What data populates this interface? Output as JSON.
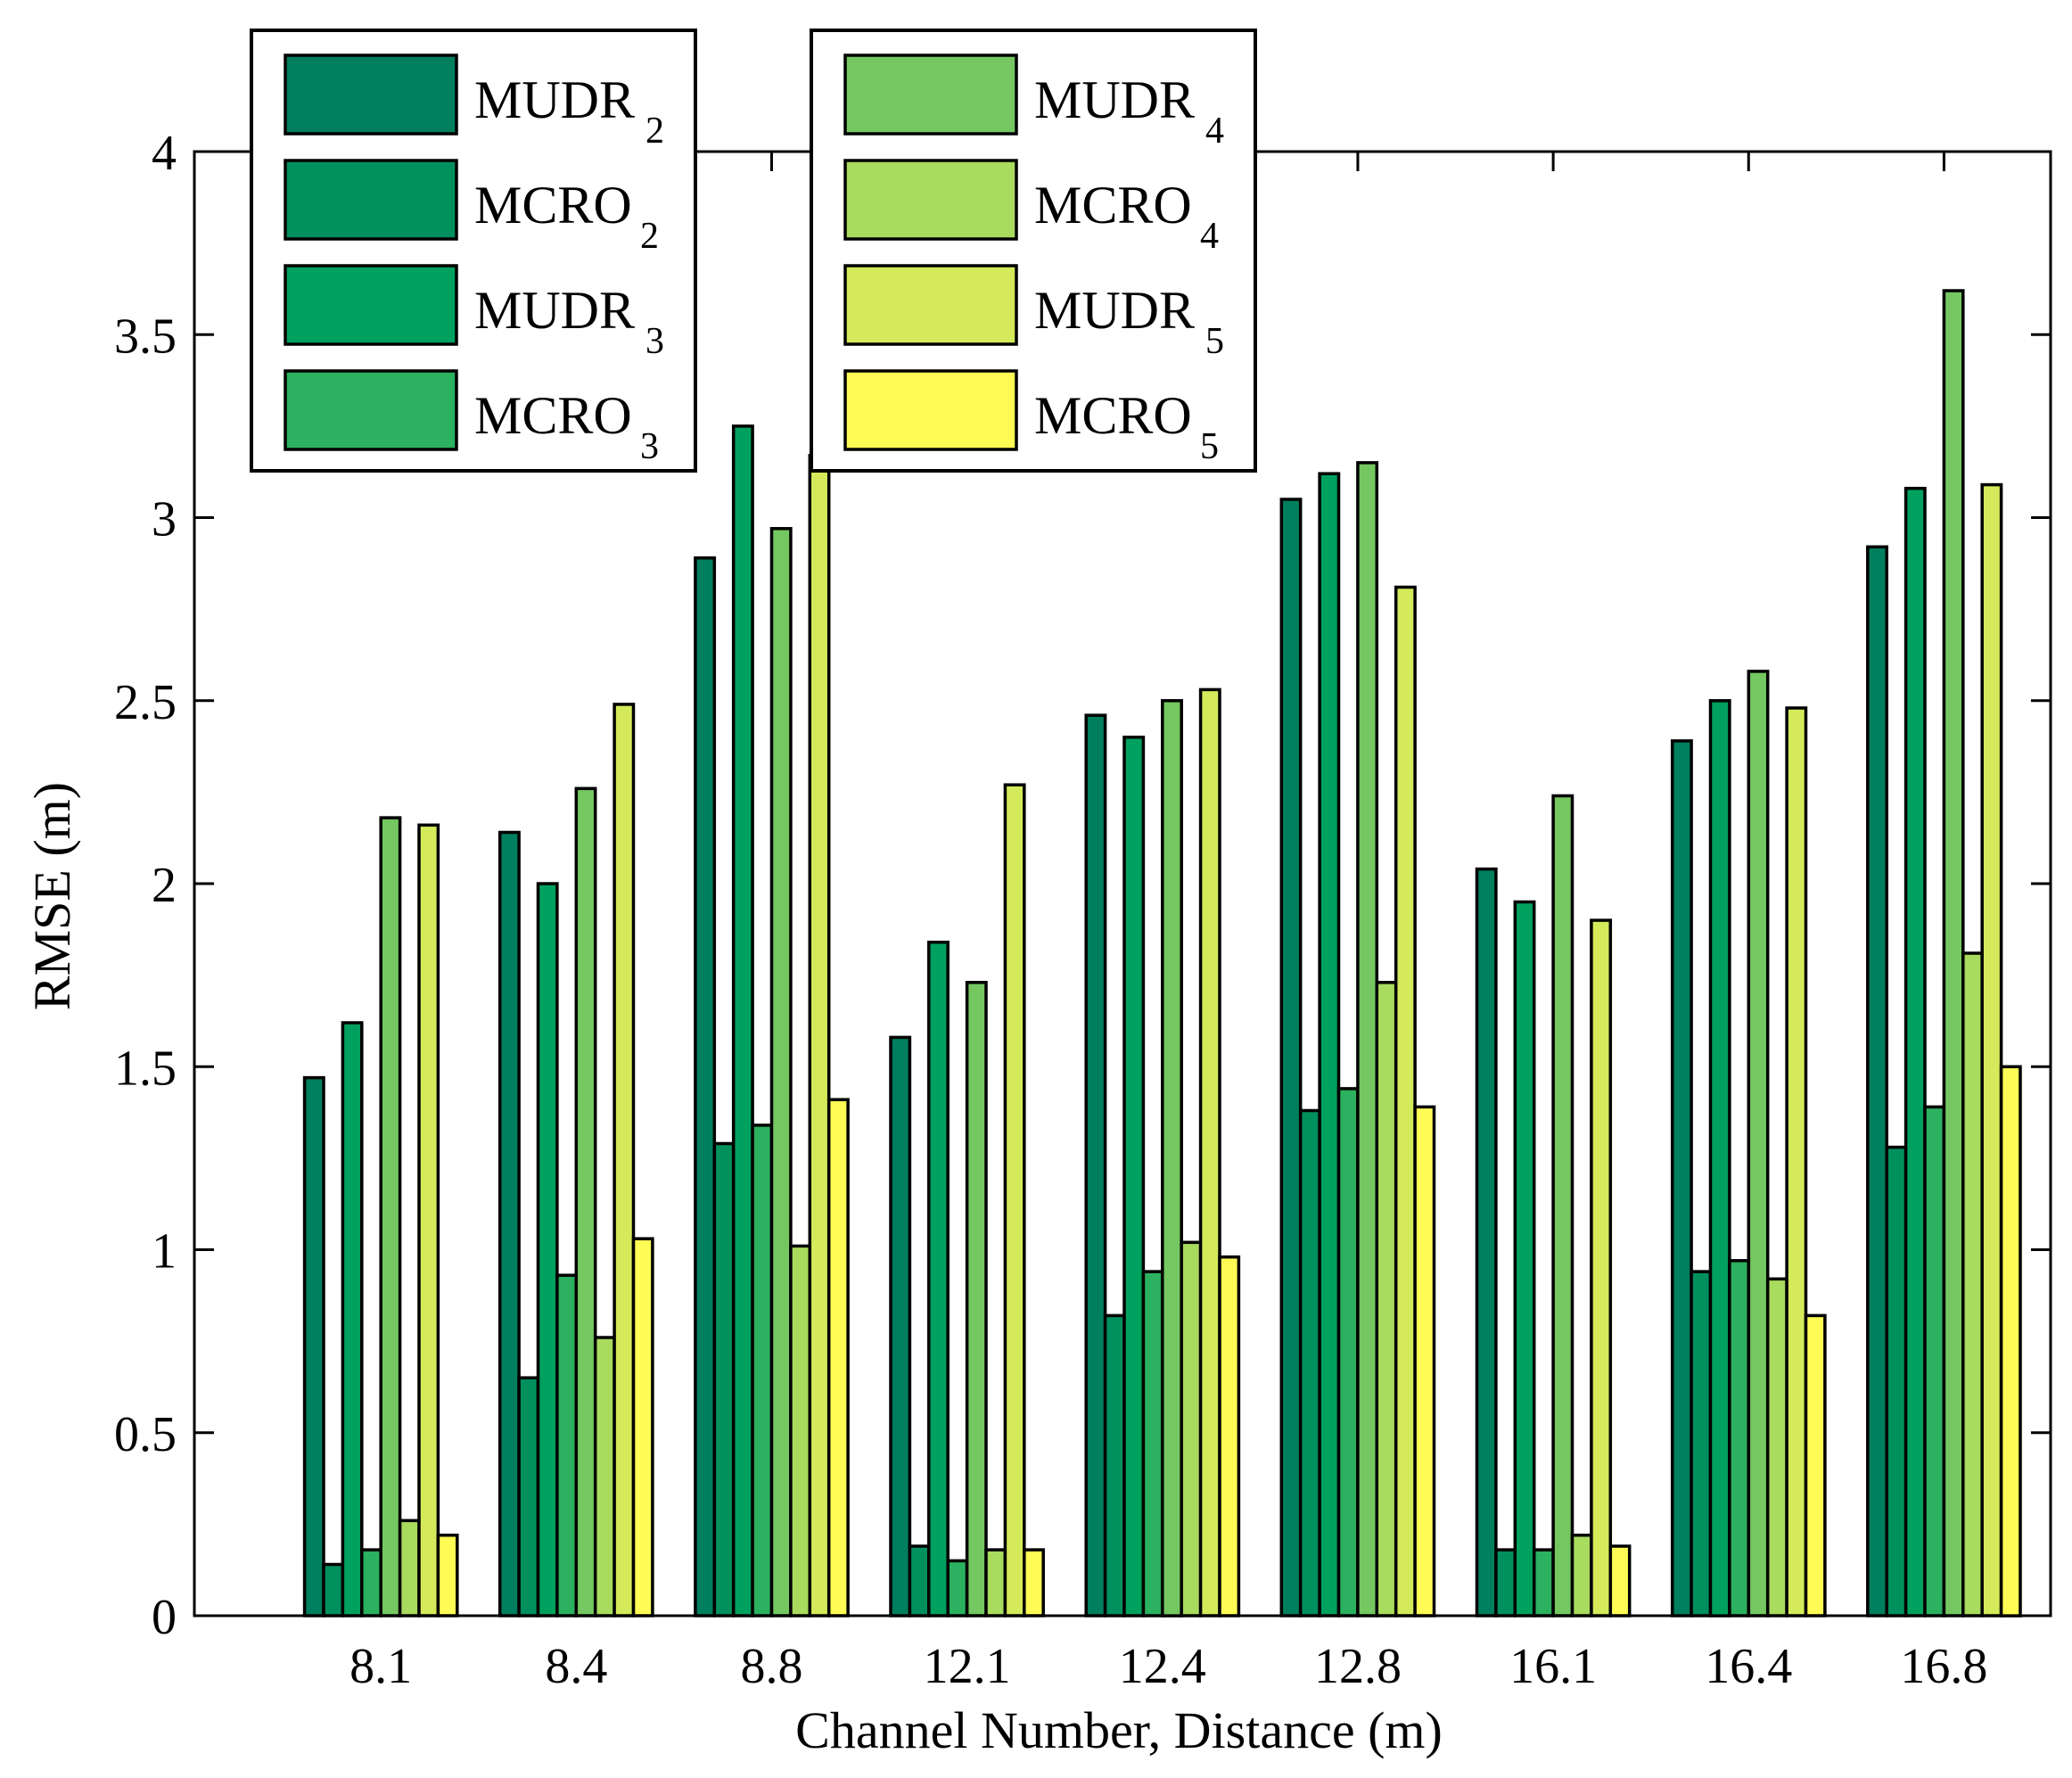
{
  "chart_data": {
    "type": "bar",
    "title": "",
    "xlabel": "Channel Number, Distance (m)",
    "ylabel": "RMSE (m)",
    "ylim": [
      0,
      4
    ],
    "yticks": [
      "0",
      "0.5",
      "1",
      "1.5",
      "2",
      "2.5",
      "3",
      "3.5",
      "4"
    ],
    "categories": [
      "8.1",
      "8.4",
      "8.8",
      "12.1",
      "12.4",
      "12.8",
      "16.1",
      "16.4",
      "16.8"
    ],
    "series": [
      {
        "name": "MUDR2",
        "base": "MUDR",
        "sub": "2",
        "color": "#007f5f",
        "values": [
          1.47,
          2.14,
          2.89,
          1.58,
          2.46,
          3.05,
          2.04,
          2.39,
          2.92
        ]
      },
      {
        "name": "MCRO2",
        "base": "MCRO",
        "sub": "2",
        "color": "#00905e",
        "values": [
          0.14,
          0.65,
          1.29,
          0.19,
          0.82,
          1.38,
          0.18,
          0.94,
          1.28
        ]
      },
      {
        "name": "MUDR3",
        "base": "MUDR",
        "sub": "3",
        "color": "#00a15e",
        "values": [
          1.62,
          2.0,
          3.25,
          1.84,
          2.4,
          3.12,
          1.95,
          2.5,
          3.08
        ]
      },
      {
        "name": "MCRO3",
        "base": "MCRO",
        "sub": "3",
        "color": "#2bb15f",
        "values": [
          0.18,
          0.93,
          1.34,
          0.15,
          0.94,
          1.44,
          0.18,
          0.97,
          1.39
        ]
      },
      {
        "name": "MUDR4",
        "base": "MUDR",
        "sub": "4",
        "color": "#75c761",
        "values": [
          2.18,
          2.26,
          2.97,
          1.73,
          2.5,
          3.15,
          2.24,
          2.58,
          3.62
        ]
      },
      {
        "name": "MCRO4",
        "base": "MCRO",
        "sub": "4",
        "color": "#a8db5e",
        "values": [
          0.26,
          0.76,
          1.01,
          0.18,
          1.02,
          1.73,
          0.22,
          0.92,
          1.81
        ]
      },
      {
        "name": "MUDR5",
        "base": "MUDR",
        "sub": "5",
        "color": "#d5ea5a",
        "values": [
          2.16,
          2.49,
          3.17,
          2.27,
          2.53,
          2.81,
          1.9,
          2.48,
          3.09
        ]
      },
      {
        "name": "MCRO5",
        "base": "MCRO",
        "sub": "5",
        "color": "#fffb55",
        "values": [
          0.22,
          1.03,
          1.41,
          0.18,
          0.98,
          1.39,
          0.19,
          0.82,
          1.5
        ]
      }
    ]
  }
}
